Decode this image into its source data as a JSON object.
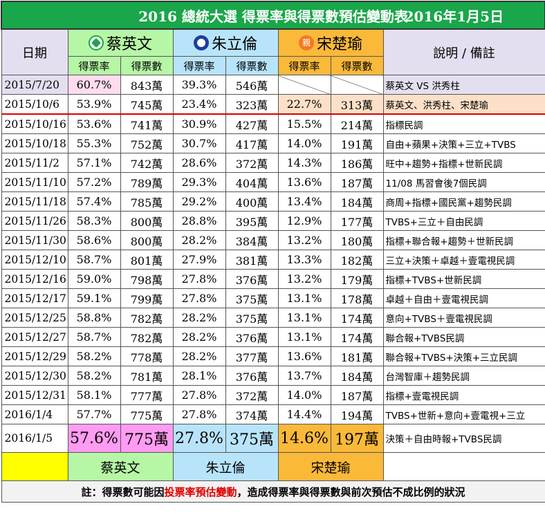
{
  "title": "2016 總統大選 得票率與得票數預估變動表",
  "date": "2016年1月5日",
  "header": {
    "date_label": "日期",
    "note_label": "說明 / 備註",
    "rate_label": "得票率",
    "count_label": "得票數",
    "candidates": [
      "蔡英文",
      "朱立倫",
      "宋楚瑜"
    ],
    "orange_logo_char": "親"
  },
  "rows": [
    {
      "date": "2015/7/20",
      "t_rate": "60.7%",
      "t_cnt": "843萬",
      "c_rate": "39.3%",
      "c_cnt": "546萬",
      "s_rate": "",
      "s_cnt": "",
      "note": "蔡英文 VS 洪秀柱"
    },
    {
      "date": "2015/10/6",
      "t_rate": "53.9%",
      "t_cnt": "745萬",
      "c_rate": "23.4%",
      "c_cnt": "323萬",
      "s_rate": "22.7%",
      "s_cnt": "313萬",
      "note": "蔡英文、洪秀柱、宋楚瑜"
    },
    {
      "date": "2015/10/16",
      "t_rate": "53.6%",
      "t_cnt": "741萬",
      "c_rate": "30.9%",
      "c_cnt": "427萬",
      "s_rate": "15.5%",
      "s_cnt": "214萬",
      "note": "指標民調"
    },
    {
      "date": "2015/10/18",
      "t_rate": "55.3%",
      "t_cnt": "752萬",
      "c_rate": "30.7%",
      "c_cnt": "417萬",
      "s_rate": "14.0%",
      "s_cnt": "191萬",
      "note": "自由+蘋果+決策+三立+TVBS"
    },
    {
      "date": "2015/11/2",
      "t_rate": "57.1%",
      "t_cnt": "742萬",
      "c_rate": "28.6%",
      "c_cnt": "372萬",
      "s_rate": "14.3%",
      "s_cnt": "186萬",
      "note": "旺中+趨勢+指標+世新民調"
    },
    {
      "date": "2015/11/10",
      "t_rate": "57.2%",
      "t_cnt": "789萬",
      "c_rate": "29.3%",
      "c_cnt": "404萬",
      "s_rate": "13.6%",
      "s_cnt": "187萬",
      "note": "11/08 馬習會後7個民調"
    },
    {
      "date": "2015/11/18",
      "t_rate": "57.4%",
      "t_cnt": "785萬",
      "c_rate": "29.2%",
      "c_cnt": "400萬",
      "s_rate": "13.4%",
      "s_cnt": "184萬",
      "note": "商周+指標+國民黨+趨勢民調"
    },
    {
      "date": "2015/11/26",
      "t_rate": "58.3%",
      "t_cnt": "800萬",
      "c_rate": "28.8%",
      "c_cnt": "395萬",
      "s_rate": "12.9%",
      "s_cnt": "177萬",
      "note": "TVBS+三立＋自由民調"
    },
    {
      "date": "2015/11/30",
      "t_rate": "58.6%",
      "t_cnt": "800萬",
      "c_rate": "28.2%",
      "c_cnt": "384萬",
      "s_rate": "13.2%",
      "s_cnt": "180萬",
      "note": "指標+聯合報+趨勢＋世新民調"
    },
    {
      "date": "2015/12/10",
      "t_rate": "58.7%",
      "t_cnt": "801萬",
      "c_rate": "27.9%",
      "c_cnt": "381萬",
      "s_rate": "13.3%",
      "s_cnt": "182萬",
      "note": "三立+決策＋卓越＋壹電視民調"
    },
    {
      "date": "2015/12/16",
      "t_rate": "59.0%",
      "t_cnt": "798萬",
      "c_rate": "27.8%",
      "c_cnt": "376萬",
      "s_rate": "13.2%",
      "s_cnt": "179萬",
      "note": "指標+TVBS+世新民調"
    },
    {
      "date": "2015/12/17",
      "t_rate": "59.1%",
      "t_cnt": "799萬",
      "c_rate": "27.8%",
      "c_cnt": "375萬",
      "s_rate": "13.1%",
      "s_cnt": "178萬",
      "note": "卓越＋自由＋壹電視民調"
    },
    {
      "date": "2015/12/25",
      "t_rate": "58.8%",
      "t_cnt": "782萬",
      "c_rate": "28.2%",
      "c_cnt": "375萬",
      "s_rate": "13.1%",
      "s_cnt": "174萬",
      "note": "意向+TVBS＋壹電視民調"
    },
    {
      "date": "2015/12/27",
      "t_rate": "58.7%",
      "t_cnt": "782萬",
      "c_rate": "28.2%",
      "c_cnt": "376萬",
      "s_rate": "13.1%",
      "s_cnt": "174萬",
      "note": "聯合報+TVBS民調"
    },
    {
      "date": "2015/12/29",
      "t_rate": "58.2%",
      "t_cnt": "778萬",
      "c_rate": "28.2%",
      "c_cnt": "377萬",
      "s_rate": "13.6%",
      "s_cnt": "181萬",
      "note": "聯合報+TVBS+決策+三立民調"
    },
    {
      "date": "2015/12/30",
      "t_rate": "58.2%",
      "t_cnt": "781萬",
      "c_rate": "28.1%",
      "c_cnt": "376萬",
      "s_rate": "13.7%",
      "s_cnt": "184萬",
      "note": "台灣智庫＋趨勢民調"
    },
    {
      "date": "2015/12/31",
      "t_rate": "58.1%",
      "t_cnt": "777萬",
      "c_rate": "27.8%",
      "c_cnt": "372萬",
      "s_rate": "14.0%",
      "s_cnt": "187萬",
      "note": "指標+壹電視民調"
    },
    {
      "date": "2016/1/4",
      "t_rate": "57.7%",
      "t_cnt": "775萬",
      "c_rate": "27.8%",
      "c_cnt": "374萬",
      "s_rate": "14.4%",
      "s_cnt": "194萬",
      "note": "TVBS+世新+意向+壹電視+三立"
    }
  ],
  "latest": {
    "date": "2016/1/5",
    "t_rate": "57.6%",
    "t_cnt": "775萬",
    "c_rate": "27.8%",
    "c_cnt": "375萬",
    "s_rate": "14.6%",
    "s_cnt": "197萬",
    "note": "決策＋自由時報+TVBS民調"
  },
  "legend": [
    "蔡英文",
    "朱立倫",
    "宋楚瑜"
  ],
  "footer": {
    "prefix": "註：得票數可能因",
    "highlight": "投票率預估變動",
    "suffix": "，造成得票率與得票數與前次預估不成比例的狀況"
  }
}
